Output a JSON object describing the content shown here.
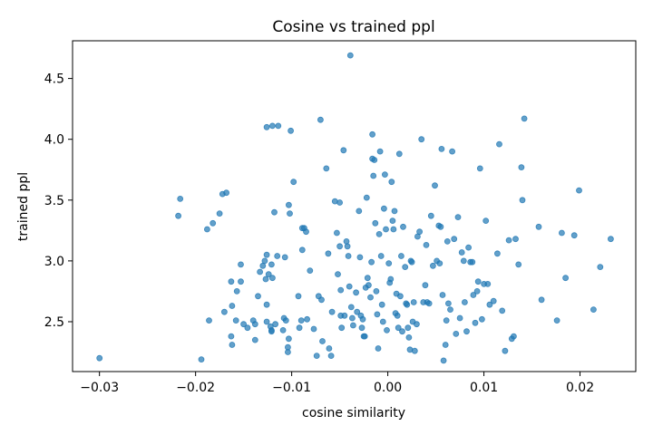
{
  "chart_data": {
    "type": "scatter",
    "title": "Cosine vs trained ppl",
    "xlabel": "cosine similarity",
    "ylabel": "trained ppl",
    "xlim": [
      -0.0328,
      0.0258
    ],
    "ylim": [
      2.09,
      4.81
    ],
    "xticks": [
      -0.03,
      -0.02,
      -0.01,
      0.0,
      0.01,
      0.02
    ],
    "xtick_labels": [
      "−0.03",
      "−0.02",
      "−0.01",
      "0.00",
      "0.01",
      "0.02"
    ],
    "yticks": [
      2.5,
      3.0,
      3.5,
      4.0,
      4.5
    ],
    "ytick_labels": [
      "2.5",
      "3.0",
      "3.5",
      "4.0",
      "4.5"
    ],
    "grid": false,
    "marker_color": "#1f77b4",
    "points": [
      [
        -0.03,
        2.2
      ],
      [
        -0.0194,
        2.19
      ],
      [
        -0.0216,
        3.51
      ],
      [
        -0.0218,
        3.37
      ],
      [
        -0.0175,
        3.39
      ],
      [
        -0.0182,
        3.31
      ],
      [
        -0.0188,
        3.26
      ],
      [
        -0.0172,
        3.55
      ],
      [
        -0.0168,
        3.56
      ],
      [
        -0.0186,
        2.51
      ],
      [
        -0.017,
        2.58
      ],
      [
        -0.0163,
        2.38
      ],
      [
        -0.0162,
        2.31
      ],
      [
        -0.0158,
        2.51
      ],
      [
        -0.0162,
        2.63
      ],
      [
        -0.0163,
        2.83
      ],
      [
        -0.0157,
        2.75
      ],
      [
        -0.0153,
        2.83
      ],
      [
        -0.0153,
        2.97
      ],
      [
        -0.015,
        2.48
      ],
      [
        -0.0146,
        2.45
      ],
      [
        -0.014,
        2.51
      ],
      [
        -0.0138,
        2.48
      ],
      [
        -0.0138,
        2.35
      ],
      [
        -0.0135,
        2.71
      ],
      [
        -0.0133,
        2.91
      ],
      [
        -0.013,
        2.96
      ],
      [
        -0.0128,
        3.0
      ],
      [
        -0.0126,
        3.05
      ],
      [
        -0.0127,
        2.85
      ],
      [
        -0.0124,
        2.89
      ],
      [
        -0.0121,
        2.97
      ],
      [
        -0.012,
        2.86
      ],
      [
        -0.0126,
        2.64
      ],
      [
        -0.0126,
        2.5
      ],
      [
        -0.0122,
        2.46
      ],
      [
        -0.0121,
        2.43
      ],
      [
        -0.0121,
        2.42
      ],
      [
        -0.0117,
        2.48
      ],
      [
        -0.0115,
        3.04
      ],
      [
        -0.0118,
        3.4
      ],
      [
        -0.0126,
        4.1
      ],
      [
        -0.012,
        4.11
      ],
      [
        -0.0114,
        4.11
      ],
      [
        -0.0107,
        3.03
      ],
      [
        -0.0108,
        2.53
      ],
      [
        -0.0106,
        2.51
      ],
      [
        -0.0109,
        2.43
      ],
      [
        -0.0103,
        2.36
      ],
      [
        -0.0104,
        2.29
      ],
      [
        -0.0104,
        2.25
      ],
      [
        -0.0102,
        3.39
      ],
      [
        -0.0103,
        3.46
      ],
      [
        -0.0101,
        4.07
      ],
      [
        -0.0098,
        3.65
      ],
      [
        -0.0092,
        2.45
      ],
      [
        -0.009,
        2.51
      ],
      [
        -0.0093,
        2.71
      ],
      [
        -0.0089,
        3.09
      ],
      [
        -0.0089,
        3.27
      ],
      [
        -0.0087,
        3.27
      ],
      [
        -0.0085,
        3.24
      ],
      [
        -0.0084,
        2.52
      ],
      [
        -0.0081,
        2.92
      ],
      [
        -0.0077,
        2.44
      ],
      [
        -0.0074,
        2.22
      ],
      [
        -0.0072,
        2.71
      ],
      [
        -0.0069,
        2.68
      ],
      [
        -0.007,
        4.16
      ],
      [
        -0.0068,
        2.34
      ],
      [
        -0.0064,
        3.76
      ],
      [
        -0.0062,
        3.06
      ],
      [
        -0.0061,
        2.28
      ],
      [
        -0.0059,
        2.22
      ],
      [
        -0.0058,
        2.58
      ],
      [
        -0.0055,
        3.49
      ],
      [
        -0.0053,
        3.23
      ],
      [
        -0.0052,
        2.89
      ],
      [
        -0.005,
        3.48
      ],
      [
        -0.005,
        3.12
      ],
      [
        -0.0049,
        2.76
      ],
      [
        -0.0049,
        2.55
      ],
      [
        -0.0048,
        2.45
      ],
      [
        -0.0046,
        3.91
      ],
      [
        -0.0045,
        2.55
      ],
      [
        -0.0043,
        3.16
      ],
      [
        -0.0042,
        3.12
      ],
      [
        -0.0041,
        3.04
      ],
      [
        -0.004,
        2.79
      ],
      [
        -0.0038,
        2.62
      ],
      [
        -0.0037,
        2.53
      ],
      [
        -0.0036,
        2.47
      ],
      [
        -0.0039,
        4.69
      ],
      [
        -0.0033,
        2.74
      ],
      [
        -0.0032,
        2.58
      ],
      [
        -0.003,
        3.41
      ],
      [
        -0.0029,
        3.03
      ],
      [
        -0.0028,
        2.55
      ],
      [
        -0.0027,
        2.45
      ],
      [
        -0.0026,
        2.52
      ],
      [
        -0.0025,
        2.38
      ],
      [
        -0.0024,
        2.38
      ],
      [
        -0.0023,
        2.78
      ],
      [
        -0.0022,
        3.52
      ],
      [
        -0.0021,
        2.86
      ],
      [
        -0.002,
        2.8
      ],
      [
        -0.0018,
        2.7
      ],
      [
        -0.0017,
        2.99
      ],
      [
        -0.0016,
        3.84
      ],
      [
        -0.0016,
        4.04
      ],
      [
        -0.0015,
        3.7
      ],
      [
        -0.0014,
        3.83
      ],
      [
        -0.0013,
        3.31
      ],
      [
        -0.0012,
        2.75
      ],
      [
        -0.0011,
        2.56
      ],
      [
        -0.001,
        2.28
      ],
      [
        -0.0009,
        3.22
      ],
      [
        -0.0008,
        3.9
      ],
      [
        -0.0007,
        3.04
      ],
      [
        -0.0006,
        2.64
      ],
      [
        -0.0005,
        2.5
      ],
      [
        -0.0004,
        3.43
      ],
      [
        -0.0003,
        3.71
      ],
      [
        -0.0002,
        3.26
      ],
      [
        -0.0001,
        2.43
      ],
      [
        0.0001,
        2.98
      ],
      [
        0.0002,
        2.82
      ],
      [
        0.0003,
        2.85
      ],
      [
        0.0004,
        3.65
      ],
      [
        0.0005,
        3.33
      ],
      [
        0.0006,
        3.26
      ],
      [
        0.0007,
        3.41
      ],
      [
        0.0008,
        2.57
      ],
      [
        0.0009,
        2.73
      ],
      [
        0.001,
        2.55
      ],
      [
        0.0011,
        2.45
      ],
      [
        0.0012,
        3.88
      ],
      [
        0.0013,
        2.71
      ],
      [
        0.0014,
        3.04
      ],
      [
        0.0015,
        2.42
      ],
      [
        0.0016,
        3.28
      ],
      [
        0.0018,
        2.95
      ],
      [
        0.0019,
        2.65
      ],
      [
        0.002,
        2.64
      ],
      [
        0.0021,
        2.45
      ],
      [
        0.0022,
        2.37
      ],
      [
        0.0023,
        2.27
      ],
      [
        0.0024,
        3.0
      ],
      [
        0.0025,
        2.99
      ],
      [
        0.0026,
        2.5
      ],
      [
        0.0027,
        2.66
      ],
      [
        0.0028,
        2.26
      ],
      [
        0.003,
        2.48
      ],
      [
        0.0031,
        3.2
      ],
      [
        0.0033,
        3.24
      ],
      [
        0.0035,
        4.0
      ],
      [
        0.0037,
        2.66
      ],
      [
        0.0039,
        2.8
      ],
      [
        0.004,
        3.13
      ],
      [
        0.0041,
        2.66
      ],
      [
        0.0043,
        2.65
      ],
      [
        0.0045,
        3.37
      ],
      [
        0.0047,
        2.96
      ],
      [
        0.0049,
        3.62
      ],
      [
        0.0051,
        3.0
      ],
      [
        0.0053,
        3.29
      ],
      [
        0.0054,
        2.98
      ],
      [
        0.0055,
        3.28
      ],
      [
        0.0056,
        3.92
      ],
      [
        0.0057,
        2.72
      ],
      [
        0.0058,
        2.18
      ],
      [
        0.006,
        2.31
      ],
      [
        0.0061,
        2.51
      ],
      [
        0.0062,
        3.16
      ],
      [
        0.0063,
        2.65
      ],
      [
        0.0065,
        2.6
      ],
      [
        0.0067,
        3.9
      ],
      [
        0.0069,
        3.18
      ],
      [
        0.0071,
        2.4
      ],
      [
        0.0073,
        3.36
      ],
      [
        0.0075,
        2.53
      ],
      [
        0.0077,
        3.07
      ],
      [
        0.0079,
        3.0
      ],
      [
        0.008,
        2.66
      ],
      [
        0.0082,
        2.42
      ],
      [
        0.0084,
        3.11
      ],
      [
        0.0086,
        2.99
      ],
      [
        0.0088,
        2.99
      ],
      [
        0.0089,
        2.72
      ],
      [
        0.0091,
        2.49
      ],
      [
        0.0093,
        2.75
      ],
      [
        0.0094,
        2.83
      ],
      [
        0.0096,
        3.76
      ],
      [
        0.0098,
        2.52
      ],
      [
        0.01,
        2.81
      ],
      [
        0.0102,
        3.33
      ],
      [
        0.0104,
        2.81
      ],
      [
        0.0106,
        2.64
      ],
      [
        0.011,
        2.67
      ],
      [
        0.0114,
        3.06
      ],
      [
        0.0116,
        3.96
      ],
      [
        0.0119,
        2.59
      ],
      [
        0.0122,
        2.26
      ],
      [
        0.0126,
        3.17
      ],
      [
        0.0129,
        2.36
      ],
      [
        0.0131,
        2.38
      ],
      [
        0.0133,
        3.18
      ],
      [
        0.0136,
        2.97
      ],
      [
        0.0139,
        3.77
      ],
      [
        0.014,
        3.5
      ],
      [
        0.0142,
        4.17
      ],
      [
        0.0157,
        3.28
      ],
      [
        0.016,
        2.68
      ],
      [
        0.0176,
        2.51
      ],
      [
        0.0181,
        3.23
      ],
      [
        0.0185,
        2.86
      ],
      [
        0.0194,
        3.21
      ],
      [
        0.0199,
        3.58
      ],
      [
        0.0214,
        2.6
      ],
      [
        0.0221,
        2.95
      ],
      [
        0.0232,
        3.18
      ]
    ]
  }
}
